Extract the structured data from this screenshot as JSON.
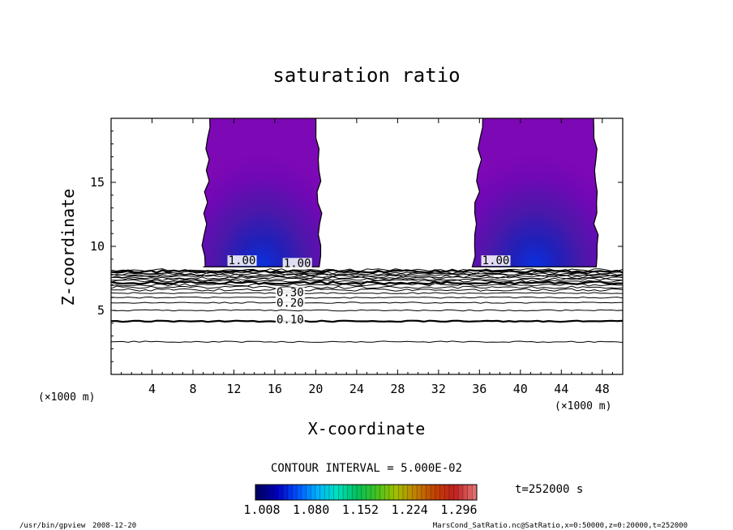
{
  "app": {
    "program_path": "/usr/bin/gpview",
    "date": "2008-12-20"
  },
  "file_info": "MarsCond_SatRatio.nc@SatRatio,x=0:50000,z=0:20000,t=252000",
  "time_label": "t=252000 s",
  "contour_interval_label": "CONTOUR INTERVAL = 5.000E-02",
  "colors": {
    "plume": "#7d08b5",
    "plume_mid": "#4a1aa8",
    "plume_core": "#1028c8",
    "contour_line": "#000000"
  },
  "chart_data": {
    "type": "contour",
    "title": "saturation ratio",
    "xlabel": "X-coordinate",
    "ylabel": "Z-coordinate",
    "x_unit_label": "(×1000 m)",
    "z_unit_label": "(×1000 m)",
    "xlim": [
      0,
      50
    ],
    "zlim": [
      0,
      20
    ],
    "x_ticks": [
      4,
      8,
      12,
      16,
      20,
      24,
      28,
      32,
      36,
      40,
      44,
      48
    ],
    "x_tick_labels": [
      "4",
      "8",
      "12",
      "16",
      "20",
      "24",
      "28",
      "32",
      "36",
      "40",
      "44",
      "48"
    ],
    "z_ticks": [
      5,
      10,
      15
    ],
    "z_tick_labels": [
      "5",
      "10",
      "15"
    ],
    "contour_levels_z": [
      {
        "level": 0.05,
        "z": 2.55
      },
      {
        "level": 0.1,
        "z": 4.15
      },
      {
        "level": 0.15,
        "z": 5.0
      },
      {
        "level": 0.2,
        "z": 5.6
      },
      {
        "level": 0.25,
        "z": 6.0
      },
      {
        "level": 0.3,
        "z": 6.35
      },
      {
        "level": 0.35,
        "z": 6.6
      },
      {
        "level": 0.4,
        "z": 6.8
      },
      {
        "level": 0.45,
        "z": 7.0
      },
      {
        "level": 0.5,
        "z": 7.15
      },
      {
        "level": 0.55,
        "z": 7.3
      },
      {
        "level": 0.6,
        "z": 7.42
      },
      {
        "level": 0.65,
        "z": 7.55
      },
      {
        "level": 0.7,
        "z": 7.65
      },
      {
        "level": 0.75,
        "z": 7.75
      },
      {
        "level": 0.8,
        "z": 7.85
      },
      {
        "level": 0.85,
        "z": 7.95
      },
      {
        "level": 0.9,
        "z": 8.05
      },
      {
        "level": 0.95,
        "z": 8.15
      }
    ],
    "contour_labels": [
      {
        "text": "0.10",
        "x": 17.5,
        "z": 4.0
      },
      {
        "text": "0.20",
        "x": 17.5,
        "z": 5.3
      },
      {
        "text": "0.30",
        "x": 17.5,
        "z": 6.1
      },
      {
        "text": "1.00",
        "x": 12.8,
        "z": 8.6
      },
      {
        "text": "1.00",
        "x": 37.6,
        "z": 8.6
      },
      {
        "text": "1.00",
        "x": 18.2,
        "z": 8.4
      }
    ],
    "supersaturated_regions": [
      {
        "name": "plume-left",
        "x_left": 9.0,
        "x_right": 20.5,
        "z_base": 8.4,
        "z_top": 20,
        "core_x": 14.5,
        "max_ratio": 1.296
      },
      {
        "name": "plume-right",
        "x_left": 35.5,
        "x_right": 47.5,
        "z_base": 8.4,
        "z_top": 20,
        "core_x": 42.5,
        "max_ratio": 1.296
      }
    ],
    "colorbar": {
      "min": 1.008,
      "max": 1.296,
      "tick_labels": [
        "1.008",
        "1.080",
        "1.152",
        "1.224",
        "1.296"
      ],
      "colors": [
        "#000066",
        "#0000c0",
        "#0050ff",
        "#00b0ff",
        "#00e0c0",
        "#00c060",
        "#40c020",
        "#a0c000",
        "#c08000",
        "#c04000",
        "#c02020",
        "#e07070"
      ]
    }
  }
}
